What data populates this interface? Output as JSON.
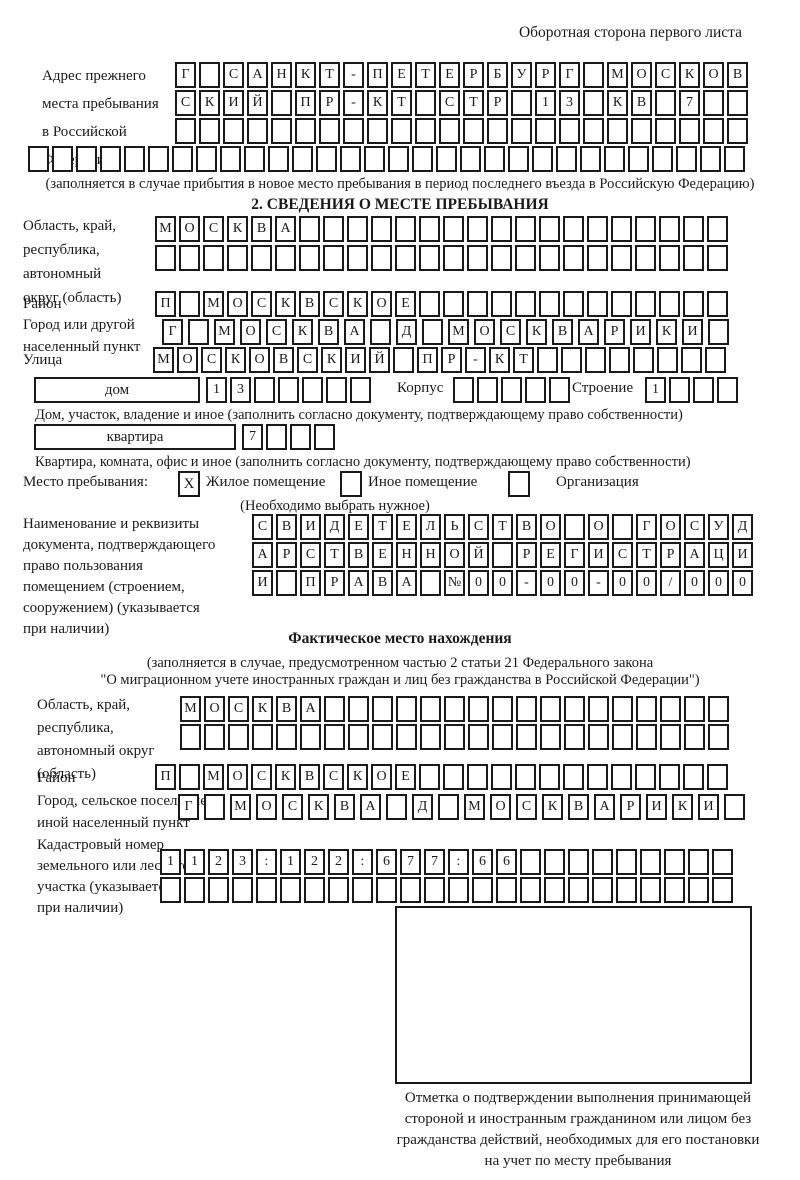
{
  "colors": {
    "ink": "#1a1a1a",
    "paper": "#ffffff"
  },
  "header": {
    "note": "Оборотная сторона первого листа"
  },
  "prev_address": {
    "label": "Адрес прежнего\nместа пребывания\nв Российской\nФедерации",
    "rows": [
      {
        "v": "Г САНКТ-ПЕТЕРБУРГ МОСКОВ",
        "n": 24
      },
      {
        "v": "СКИЙ ПР-КТ СТР 13 КВ 7",
        "n": 24
      },
      {
        "v": "",
        "n": 24
      },
      {
        "v": "",
        "n": 30
      }
    ],
    "note": "(заполняется в случае прибытия в новое место пребывания в период последнего въезда в Российскую Федерацию)"
  },
  "section2": {
    "title": "2. СВЕДЕНИЯ О МЕСТЕ ПРЕБЫВАНИЯ",
    "region": {
      "label": "Область, край,\nреспублика,\nавтономный\nокруг (область)",
      "rows": [
        {
          "v": "МОСКВА",
          "n": 24
        },
        {
          "v": "",
          "n": 24
        }
      ]
    },
    "district": {
      "label": "Район",
      "row": {
        "v": "П МОСКВСКОЕ",
        "n": 24
      }
    },
    "city": {
      "label": "Город или другой\nнаселенный пункт",
      "row": {
        "v": "Г МОСКВА Д МОСКВАРИКИ",
        "n": 22
      }
    },
    "street": {
      "label": "Улица",
      "row": {
        "v": "МОСКОВСКИЙ ПР-КТ",
        "n": 24
      }
    },
    "house": {
      "box_label": "дом",
      "cells": {
        "v": "13",
        "n": 7
      },
      "korpus_label": "Корпус",
      "korpus_cells": {
        "v": "",
        "n": 5
      },
      "stroenie_label": "Строение",
      "stroenie_cells": {
        "v": "1",
        "n": 4
      },
      "note": "Дом, участок, владение и иное (заполнить согласно документу, подтверждающему право собственности)"
    },
    "apartment": {
      "box_label": "квартира",
      "cells": {
        "v": "7",
        "n": 4
      },
      "note": "Квартира, комната, офис и иное (заполнить согласно документу, подтверждающему право собственности)"
    },
    "stay": {
      "label": "Место пребывания:",
      "options": [
        {
          "label": "Жилое помещение",
          "mark": "X"
        },
        {
          "label": "Иное помещение",
          "mark": ""
        },
        {
          "label": "Организация",
          "mark": ""
        }
      ],
      "note": "(Необходимо выбрать нужное)"
    },
    "document": {
      "label": "Наименование и реквизиты\nдокумента, подтверждающего\nправо пользования\nпомещением (строением,\nсооружением) (указывается\nпри наличии)",
      "rows": [
        {
          "v": "СВИДЕТЕЛЬСТВО О ГОСУД",
          "n": 21
        },
        {
          "v": "АРСТВЕННОЙ РЕГИСТРАЦИ",
          "n": 21
        },
        {
          "v": "И ПРАВА №00-00-00/000",
          "n": 21
        }
      ]
    }
  },
  "actual_location": {
    "title": "Фактическое место нахождения",
    "note1": "(заполняется в случае, предусмотренном частью 2 статьи 21 Федерального закона",
    "note2": "\"О миграционном учете иностранных граждан и лиц без гражданства в Российской Федерации\")",
    "region": {
      "label": "Область, край,\nреспублика,\nавтономный округ\n(область)",
      "rows": [
        {
          "v": "МОСКВА",
          "n": 23
        },
        {
          "v": "",
          "n": 23
        }
      ]
    },
    "district": {
      "label": "Район",
      "row": {
        "v": "П МОСКВСКОЕ",
        "n": 24
      }
    },
    "city": {
      "label": "Город, сельское поселение,\nиной населенный пункт",
      "row": {
        "v": "Г МОСКВА Д МОСКВАРИКИ",
        "n": 22
      }
    },
    "cadastre": {
      "label": "Кадастровый номер\nземельного или лесного\nучастка (указывается\nпри наличии)",
      "rows": [
        {
          "v": "1123:122:677:66",
          "n": 24
        },
        {
          "v": "",
          "n": 24
        }
      ]
    }
  },
  "stamp": {
    "caption": "Отметка о подтверждении выполнения принимающей\nстороной и иностранным гражданином или лицом без\nгражданства действий, необходимых для его постановки\nна учет по месту пребывания"
  }
}
